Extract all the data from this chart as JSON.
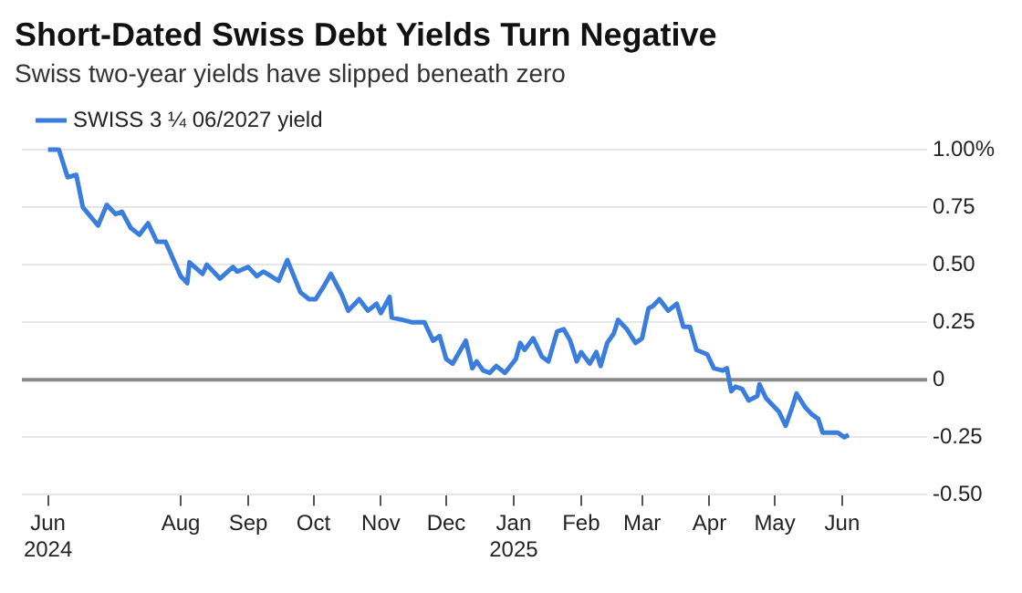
{
  "chart_data": {
    "type": "line",
    "title": "Short-Dated Swiss Debt Yields Turn Negative",
    "subtitle": "Swiss two-year yields have slipped beneath zero",
    "x": [
      "2024-06-01",
      "2024-06-06",
      "2024-06-10",
      "2024-06-14",
      "2024-06-17",
      "2024-06-24",
      "2024-06-28",
      "2024-07-02",
      "2024-07-05",
      "2024-07-09",
      "2024-07-13",
      "2024-07-17",
      "2024-07-21",
      "2024-07-25",
      "2024-08-01",
      "2024-08-04",
      "2024-08-05",
      "2024-08-11",
      "2024-08-13",
      "2024-08-19",
      "2024-08-25",
      "2024-08-27",
      "2024-09-01",
      "2024-09-05",
      "2024-09-08",
      "2024-09-15",
      "2024-09-19",
      "2024-09-25",
      "2024-09-29",
      "2024-10-02",
      "2024-10-06",
      "2024-10-09",
      "2024-10-14",
      "2024-10-17",
      "2024-10-22",
      "2024-10-26",
      "2024-10-30",
      "2024-11-01",
      "2024-11-05",
      "2024-11-06",
      "2024-11-11",
      "2024-11-15",
      "2024-11-21",
      "2024-11-25",
      "2024-11-28",
      "2024-12-01",
      "2024-12-04",
      "2024-12-07",
      "2024-12-10",
      "2024-12-13",
      "2024-12-15",
      "2024-12-18",
      "2024-12-21",
      "2024-12-24",
      "2024-12-28",
      "2025-01-02",
      "2025-01-04",
      "2025-01-06",
      "2025-01-10",
      "2025-01-14",
      "2025-01-17",
      "2025-01-21",
      "2025-01-24",
      "2025-01-27",
      "2025-01-30",
      "2025-02-01",
      "2025-02-05",
      "2025-02-08",
      "2025-02-10",
      "2025-02-13",
      "2025-02-16",
      "2025-02-18",
      "2025-02-22",
      "2025-02-26",
      "2025-03-01",
      "2025-03-04",
      "2025-03-06",
      "2025-03-09",
      "2025-03-13",
      "2025-03-17",
      "2025-03-20",
      "2025-03-23",
      "2025-03-26",
      "2025-03-31",
      "2025-04-03",
      "2025-04-07",
      "2025-04-09",
      "2025-04-11",
      "2025-04-13",
      "2025-04-16",
      "2025-04-19",
      "2025-04-23",
      "2025-04-24",
      "2025-04-27",
      "2025-04-30",
      "2025-05-03",
      "2025-05-06",
      "2025-05-09",
      "2025-05-11",
      "2025-05-15",
      "2025-05-18",
      "2025-05-21",
      "2025-05-23",
      "2025-05-27",
      "2025-05-30",
      "2025-06-02",
      "2025-06-04"
    ],
    "series": [
      {
        "name": "SWISS 3 ¼ 06/2027 yield",
        "color": "#3b7ddd",
        "values": [
          1.0,
          1.0,
          0.88,
          0.89,
          0.75,
          0.67,
          0.76,
          0.72,
          0.73,
          0.66,
          0.63,
          0.68,
          0.6,
          0.6,
          0.45,
          0.42,
          0.51,
          0.46,
          0.5,
          0.44,
          0.49,
          0.47,
          0.49,
          0.45,
          0.47,
          0.43,
          0.52,
          0.38,
          0.35,
          0.35,
          0.41,
          0.46,
          0.37,
          0.3,
          0.35,
          0.3,
          0.33,
          0.29,
          0.36,
          0.27,
          0.26,
          0.25,
          0.25,
          0.17,
          0.19,
          0.09,
          0.07,
          0.12,
          0.17,
          0.05,
          0.08,
          0.04,
          0.03,
          0.06,
          0.03,
          0.09,
          0.16,
          0.13,
          0.18,
          0.1,
          0.08,
          0.21,
          0.22,
          0.17,
          0.08,
          0.12,
          0.07,
          0.12,
          0.06,
          0.16,
          0.2,
          0.26,
          0.22,
          0.16,
          0.18,
          0.31,
          0.32,
          0.35,
          0.3,
          0.33,
          0.23,
          0.23,
          0.13,
          0.11,
          0.05,
          0.04,
          0.05,
          -0.05,
          -0.03,
          -0.04,
          -0.09,
          -0.07,
          -0.02,
          -0.08,
          -0.11,
          -0.14,
          -0.2,
          -0.12,
          -0.06,
          -0.12,
          -0.15,
          -0.17,
          -0.23,
          -0.23,
          -0.23,
          -0.25,
          -0.24
        ]
      }
    ],
    "xlim": [
      "2024-05-20",
      "2025-07-10"
    ],
    "xticks": [
      {
        "value": "2024-06-01",
        "label": "Jun 2024"
      },
      {
        "value": "2024-08-01",
        "label": "Aug"
      },
      {
        "value": "2024-09-01",
        "label": "Sep"
      },
      {
        "value": "2024-10-01",
        "label": "Oct"
      },
      {
        "value": "2024-11-01",
        "label": "Nov"
      },
      {
        "value": "2024-12-01",
        "label": "Dec"
      },
      {
        "value": "2025-01-01",
        "label": "Jan 2025"
      },
      {
        "value": "2025-02-01",
        "label": "Feb"
      },
      {
        "value": "2025-03-01",
        "label": "Mar"
      },
      {
        "value": "2025-04-01",
        "label": "Apr"
      },
      {
        "value": "2025-05-01",
        "label": "May"
      },
      {
        "value": "2025-06-01",
        "label": "Jun"
      }
    ],
    "ylim": [
      -0.5,
      1.0
    ],
    "yticks": [
      {
        "value": -0.5,
        "label": "-0.50"
      },
      {
        "value": -0.25,
        "label": "-0.25"
      },
      0,
      {
        "value": 0.25,
        "label": "0.25"
      },
      {
        "value": 0.5,
        "label": "0.50"
      },
      {
        "value": 0.75,
        "label": "0.75"
      },
      {
        "value": 1,
        "label": "1.00%"
      }
    ],
    "ref_lines": [
      {
        "axis": "y",
        "value": 0,
        "color": "#888888"
      }
    ],
    "grid": "y",
    "legend": "top left",
    "marker": "none",
    "line_style": "solid"
  }
}
